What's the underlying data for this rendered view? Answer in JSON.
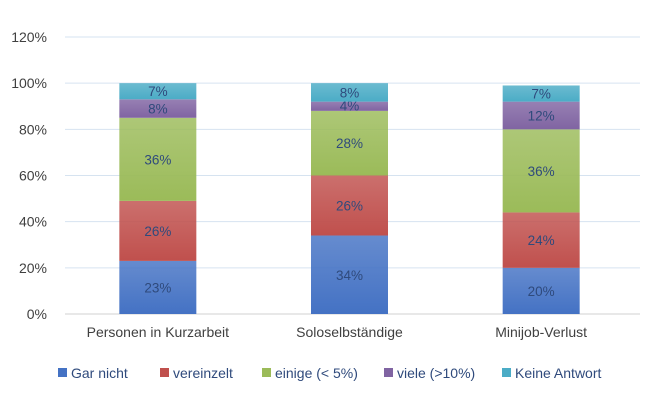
{
  "chart_data": {
    "type": "bar",
    "stacked": true,
    "categories": [
      "Personen in Kurzarbeit",
      "Soloselbständige",
      "Minijob-Verlust"
    ],
    "series": [
      {
        "name": "Gar nicht",
        "values": [
          23,
          34,
          20
        ],
        "color": "#4472C4"
      },
      {
        "name": "vereinzelt",
        "values": [
          26,
          26,
          24
        ],
        "color": "#C0504D"
      },
      {
        "name": "einige (< 5%)",
        "values": [
          36,
          28,
          36
        ],
        "color": "#9BBB59"
      },
      {
        "name": "viele (>10%)",
        "values": [
          8,
          4,
          12
        ],
        "color": "#8064A2"
      },
      {
        "name": "Keine Antwort",
        "values": [
          7,
          8,
          7
        ],
        "color": "#4BACC6"
      }
    ],
    "yticks": [
      "0%",
      "20%",
      "40%",
      "60%",
      "80%",
      "100%",
      "120%"
    ],
    "ylim": [
      0,
      120
    ],
    "grid": true,
    "legend": "bottom",
    "value_suffix": "%"
  }
}
